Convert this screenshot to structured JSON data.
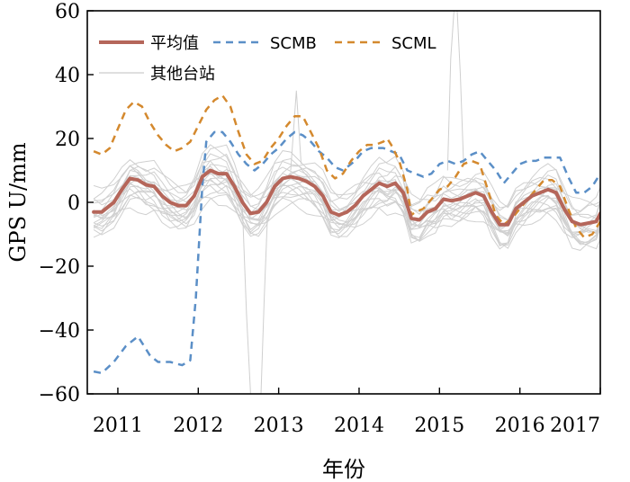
{
  "chart_data": {
    "type": "line",
    "title": "",
    "xlabel": "年份",
    "ylabel": "GPS U/mm",
    "xlim": [
      2010.62,
      2017.0
    ],
    "ylim": [
      -60,
      60
    ],
    "xticks": [
      2011,
      2012,
      2013,
      2014,
      2015,
      2016,
      2017
    ],
    "xtick_labels": [
      "2011",
      "2012",
      "2013",
      "2014",
      "2015",
      "2016",
      "2017"
    ],
    "yticks": [
      -60,
      -40,
      -20,
      0,
      20,
      40,
      60
    ],
    "ytick_labels": [
      "−60",
      "−40",
      "−20",
      "0",
      "20",
      "40",
      "60"
    ],
    "legend_position": "top-left",
    "series": [
      {
        "name": "平均值",
        "style": "solid",
        "color": "#b5665a",
        "width": 4,
        "points": [
          [
            2010.7,
            -3
          ],
          [
            2010.8,
            -3
          ],
          [
            2010.95,
            0
          ],
          [
            2011.05,
            4
          ],
          [
            2011.15,
            7.5
          ],
          [
            2011.25,
            7
          ],
          [
            2011.35,
            5.5
          ],
          [
            2011.45,
            5
          ],
          [
            2011.55,
            2
          ],
          [
            2011.65,
            0
          ],
          [
            2011.75,
            -1
          ],
          [
            2011.85,
            -1
          ],
          [
            2011.95,
            2
          ],
          [
            2012.05,
            8
          ],
          [
            2012.15,
            10
          ],
          [
            2012.25,
            9
          ],
          [
            2012.35,
            9
          ],
          [
            2012.45,
            5
          ],
          [
            2012.55,
            0
          ],
          [
            2012.65,
            -3.5
          ],
          [
            2012.75,
            -3
          ],
          [
            2012.85,
            0
          ],
          [
            2012.95,
            5
          ],
          [
            2013.05,
            7.5
          ],
          [
            2013.15,
            8
          ],
          [
            2013.25,
            7.5
          ],
          [
            2013.35,
            6.5
          ],
          [
            2013.45,
            5
          ],
          [
            2013.55,
            2
          ],
          [
            2013.65,
            -3
          ],
          [
            2013.75,
            -4
          ],
          [
            2013.85,
            -3
          ],
          [
            2013.95,
            -1
          ],
          [
            2014.05,
            2
          ],
          [
            2014.15,
            4
          ],
          [
            2014.25,
            6
          ],
          [
            2014.35,
            5
          ],
          [
            2014.45,
            6
          ],
          [
            2014.55,
            3
          ],
          [
            2014.65,
            -5
          ],
          [
            2014.75,
            -5.5
          ],
          [
            2014.85,
            -3
          ],
          [
            2014.95,
            -2
          ],
          [
            2015.05,
            1
          ],
          [
            2015.15,
            0.5
          ],
          [
            2015.25,
            1
          ],
          [
            2015.35,
            2
          ],
          [
            2015.45,
            3
          ],
          [
            2015.55,
            2
          ],
          [
            2015.65,
            -3
          ],
          [
            2015.75,
            -7
          ],
          [
            2015.85,
            -7
          ],
          [
            2015.95,
            -2
          ],
          [
            2016.05,
            0
          ],
          [
            2016.15,
            2
          ],
          [
            2016.25,
            3
          ],
          [
            2016.35,
            4
          ],
          [
            2016.45,
            3
          ],
          [
            2016.55,
            -2
          ],
          [
            2016.65,
            -6
          ],
          [
            2016.75,
            -7
          ],
          [
            2016.85,
            -6.5
          ],
          [
            2016.95,
            -6
          ],
          [
            2017.0,
            -3.5
          ]
        ]
      },
      {
        "name": "SCMB",
        "style": "dashed",
        "color": "#5b8fc7",
        "width": 2.5,
        "points": [
          [
            2010.7,
            -53
          ],
          [
            2010.8,
            -53.5
          ],
          [
            2010.95,
            -50
          ],
          [
            2011.1,
            -45
          ],
          [
            2011.25,
            -42
          ],
          [
            2011.4,
            -48
          ],
          [
            2011.5,
            -50
          ],
          [
            2011.65,
            -50
          ],
          [
            2011.8,
            -51
          ],
          [
            2011.9,
            -49.5
          ],
          [
            2011.97,
            -30
          ],
          [
            2012.05,
            5
          ],
          [
            2012.1,
            19
          ],
          [
            2012.2,
            22
          ],
          [
            2012.3,
            22
          ],
          [
            2012.4,
            19
          ],
          [
            2012.5,
            15
          ],
          [
            2012.6,
            12
          ],
          [
            2012.7,
            10
          ],
          [
            2012.8,
            12
          ],
          [
            2012.9,
            15
          ],
          [
            2013.0,
            17
          ],
          [
            2013.1,
            20
          ],
          [
            2013.2,
            22
          ],
          [
            2013.3,
            21
          ],
          [
            2013.4,
            19
          ],
          [
            2013.5,
            16
          ],
          [
            2013.6,
            14
          ],
          [
            2013.7,
            11
          ],
          [
            2013.8,
            10
          ],
          [
            2013.95,
            13
          ],
          [
            2014.05,
            16
          ],
          [
            2014.15,
            17
          ],
          [
            2014.3,
            17
          ],
          [
            2014.4,
            16
          ],
          [
            2014.5,
            15
          ],
          [
            2014.6,
            10
          ],
          [
            2014.7,
            9
          ],
          [
            2014.8,
            8
          ],
          [
            2014.9,
            9
          ],
          [
            2015.0,
            12
          ],
          [
            2015.1,
            13
          ],
          [
            2015.2,
            12
          ],
          [
            2015.3,
            13
          ],
          [
            2015.4,
            15
          ],
          [
            2015.5,
            16
          ],
          [
            2015.6,
            13
          ],
          [
            2015.7,
            10
          ],
          [
            2015.8,
            6
          ],
          [
            2015.9,
            9
          ],
          [
            2016.0,
            12
          ],
          [
            2016.1,
            13
          ],
          [
            2016.2,
            13
          ],
          [
            2016.3,
            14
          ],
          [
            2016.4,
            14
          ],
          [
            2016.5,
            14
          ],
          [
            2016.6,
            8
          ],
          [
            2016.7,
            3
          ],
          [
            2016.8,
            3
          ],
          [
            2016.9,
            5
          ],
          [
            2017.0,
            9
          ]
        ]
      },
      {
        "name": "SCML",
        "style": "dashed",
        "color": "#d4892e",
        "width": 2.5,
        "points": [
          [
            2010.7,
            16
          ],
          [
            2010.8,
            15
          ],
          [
            2010.9,
            17
          ],
          [
            2011.0,
            23
          ],
          [
            2011.1,
            29
          ],
          [
            2011.2,
            31.5
          ],
          [
            2011.3,
            30
          ],
          [
            2011.4,
            25
          ],
          [
            2011.5,
            21
          ],
          [
            2011.6,
            18
          ],
          [
            2011.7,
            16
          ],
          [
            2011.8,
            17
          ],
          [
            2011.9,
            19
          ],
          [
            2012.0,
            24
          ],
          [
            2012.1,
            29
          ],
          [
            2012.2,
            32
          ],
          [
            2012.3,
            33.5
          ],
          [
            2012.4,
            30
          ],
          [
            2012.5,
            22
          ],
          [
            2012.6,
            15
          ],
          [
            2012.7,
            12
          ],
          [
            2012.8,
            13
          ],
          [
            2012.9,
            17
          ],
          [
            2013.0,
            20
          ],
          [
            2013.1,
            24
          ],
          [
            2013.2,
            27
          ],
          [
            2013.3,
            27
          ],
          [
            2013.4,
            22
          ],
          [
            2013.5,
            17
          ],
          [
            2013.6,
            10
          ],
          [
            2013.7,
            7.5
          ],
          [
            2013.8,
            9
          ],
          [
            2013.9,
            13
          ],
          [
            2014.0,
            16
          ],
          [
            2014.1,
            18
          ],
          [
            2014.2,
            18
          ],
          [
            2014.3,
            19
          ],
          [
            2014.35,
            20
          ],
          [
            2014.4,
            18
          ],
          [
            2014.5,
            13
          ],
          [
            2014.6,
            4
          ],
          [
            2014.65,
            -4
          ],
          [
            2014.7,
            -3
          ],
          [
            2014.8,
            -2
          ],
          [
            2014.9,
            1
          ],
          [
            2015.0,
            4
          ],
          [
            2015.1,
            5
          ],
          [
            2015.2,
            8
          ],
          [
            2015.3,
            12
          ],
          [
            2015.4,
            13
          ],
          [
            2015.5,
            12
          ],
          [
            2015.6,
            4
          ],
          [
            2015.7,
            -4
          ],
          [
            2015.8,
            -7
          ],
          [
            2015.9,
            -5
          ],
          [
            2016.0,
            -2
          ],
          [
            2016.1,
            1
          ],
          [
            2016.2,
            4
          ],
          [
            2016.3,
            7
          ],
          [
            2016.4,
            7
          ],
          [
            2016.5,
            5
          ],
          [
            2016.6,
            -2
          ],
          [
            2016.7,
            -8
          ],
          [
            2016.8,
            -11
          ],
          [
            2016.9,
            -10
          ],
          [
            2017.0,
            -6
          ]
        ]
      },
      {
        "name": "其他台站",
        "style": "solid",
        "color": "#cccccc",
        "width": 1,
        "points": []
      }
    ],
    "other_station_spikes": [
      [
        [
          2012.55,
          -2
        ],
        [
          2012.6,
          -35
        ],
        [
          2012.65,
          -60
        ]
      ],
      [
        [
          2012.78,
          -60
        ],
        [
          2012.82,
          -30
        ],
        [
          2012.86,
          -5
        ]
      ],
      [
        [
          2015.1,
          10
        ],
        [
          2015.14,
          45
        ],
        [
          2015.18,
          60
        ]
      ],
      [
        [
          2015.22,
          60
        ],
        [
          2015.26,
          40
        ],
        [
          2015.3,
          12
        ]
      ],
      [
        [
          2013.15,
          10
        ],
        [
          2013.22,
          35
        ],
        [
          2013.28,
          12
        ]
      ]
    ]
  }
}
